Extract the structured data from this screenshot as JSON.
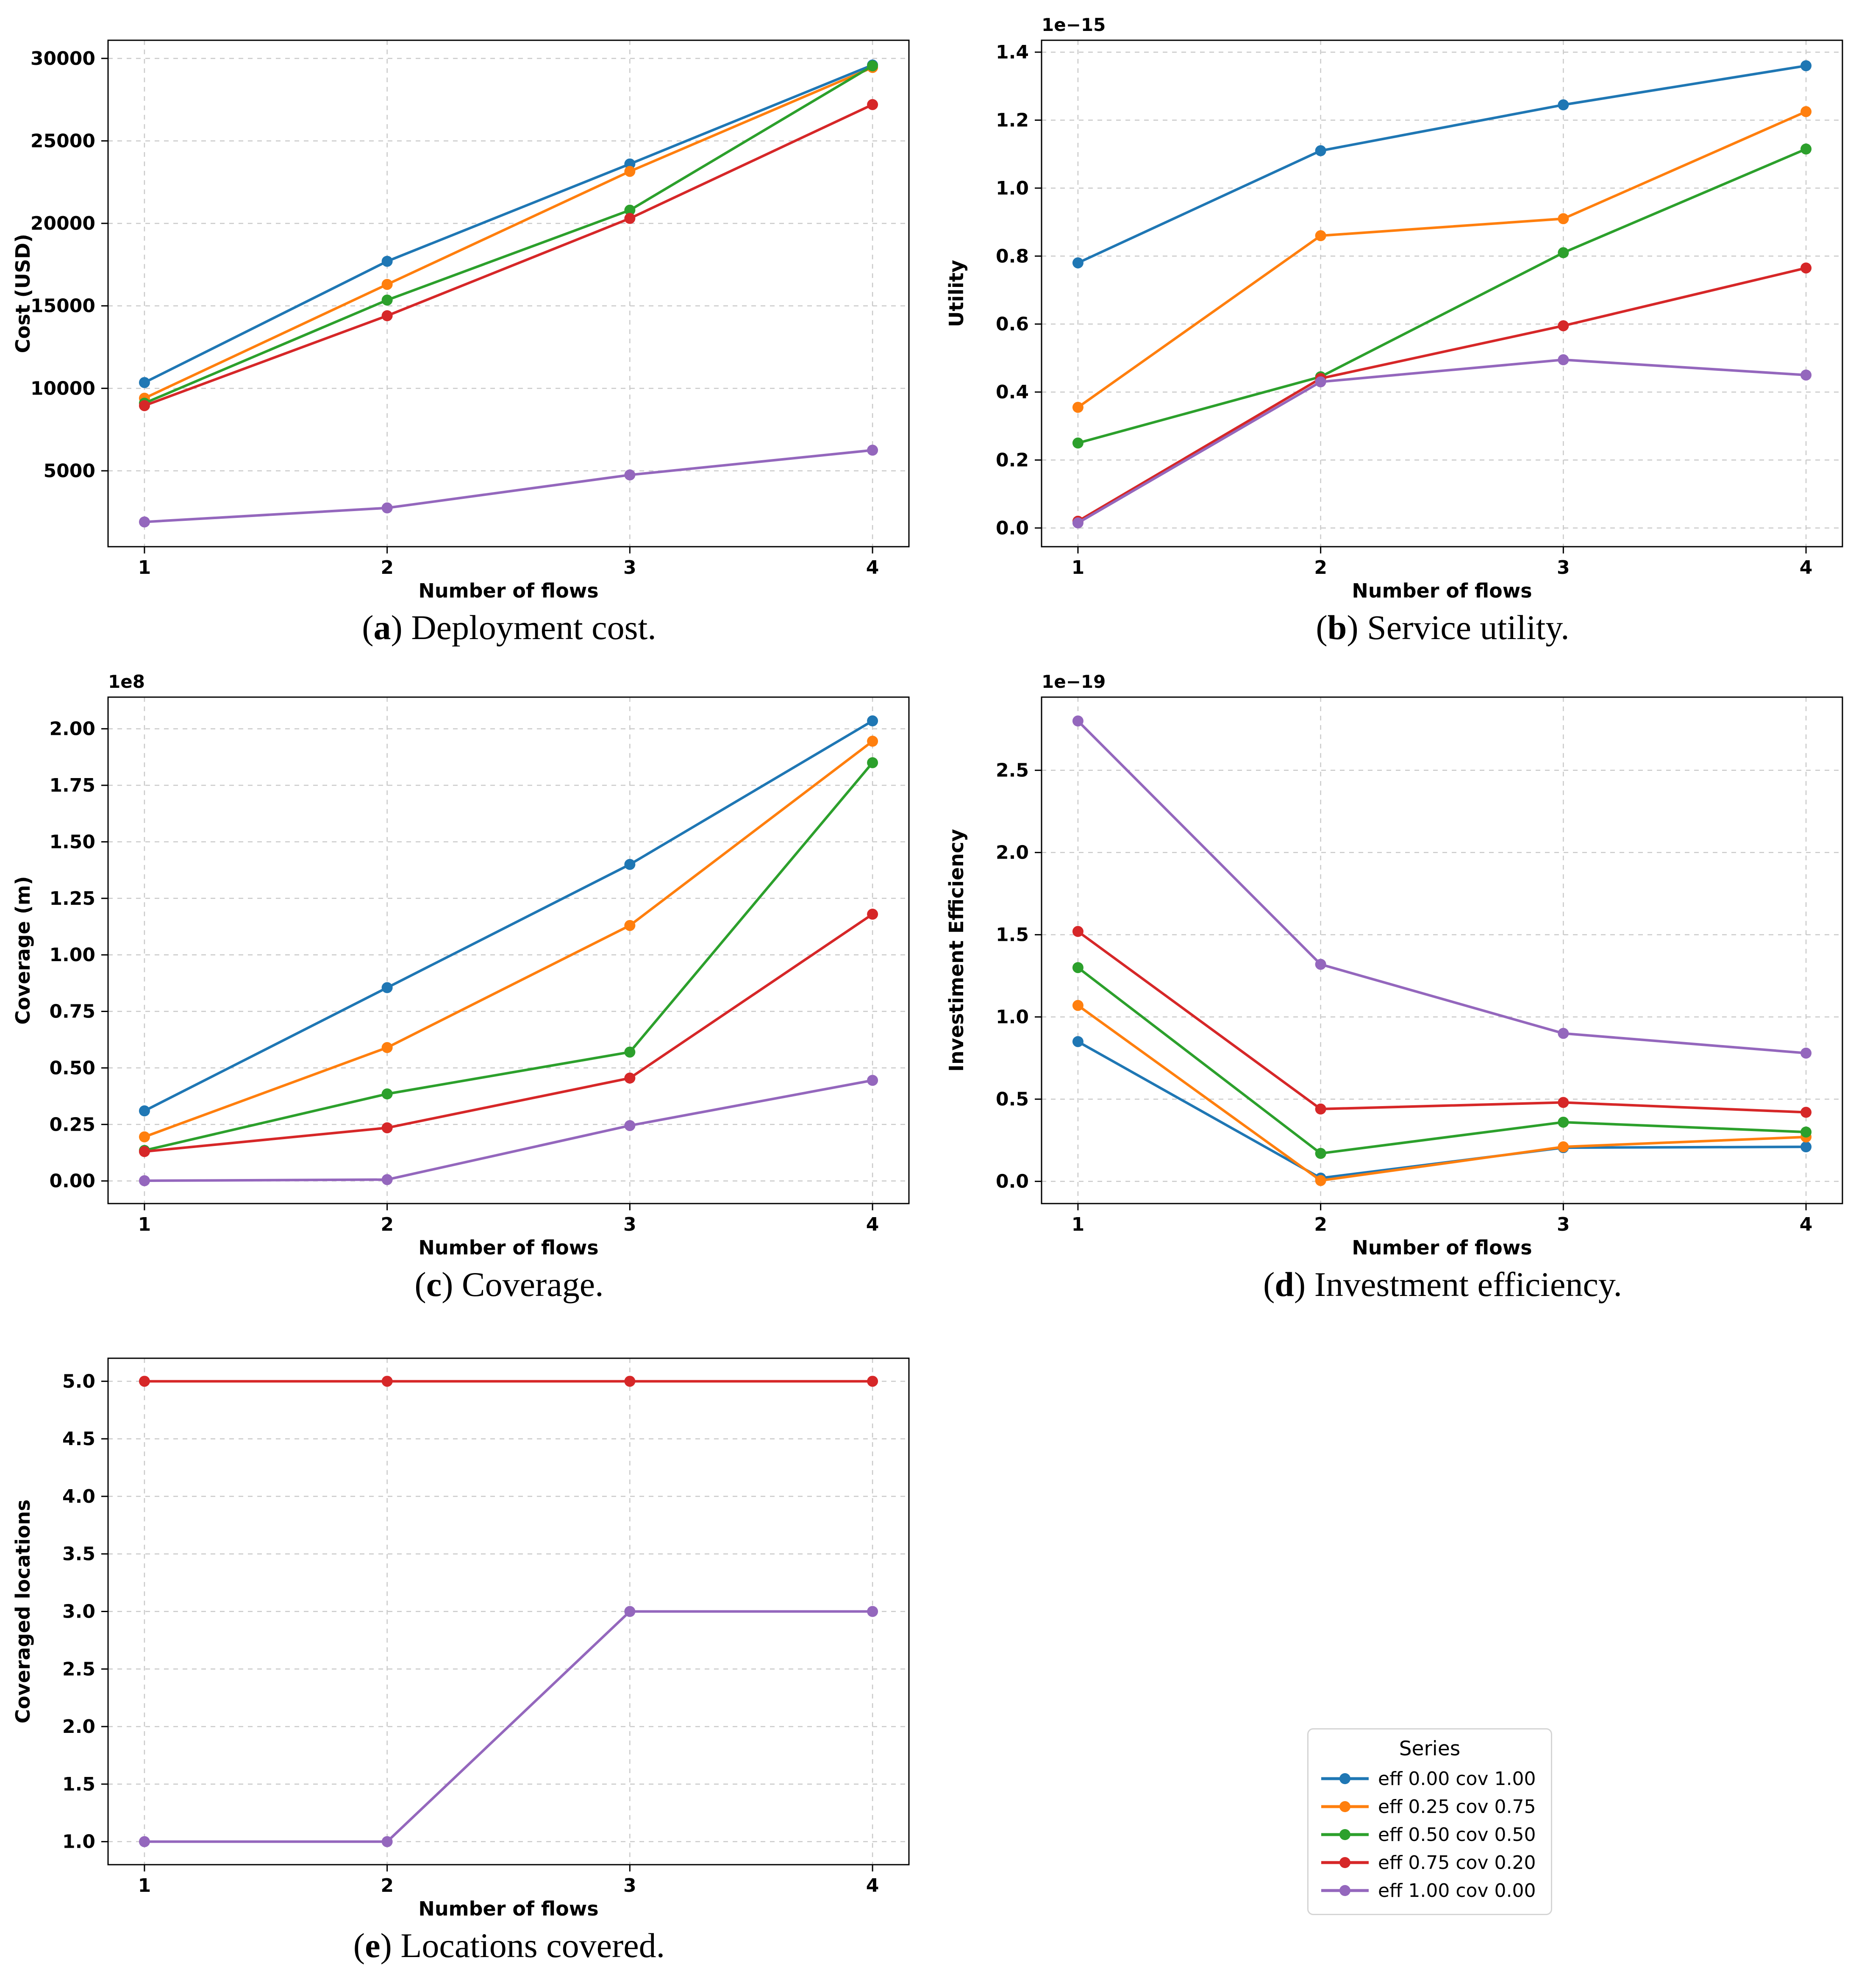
{
  "page": {
    "background": "#ffffff"
  },
  "axis": {
    "xlabel": "Number of flows",
    "x": [
      1,
      2,
      3,
      4
    ],
    "xtick_labels": [
      "1",
      "2",
      "3",
      "4"
    ],
    "xlim": [
      0.85,
      4.15
    ]
  },
  "legend": {
    "title": "Series",
    "items": [
      {
        "key": "s1",
        "label": "eff 0.00 cov 1.00",
        "color": "#1f77b4"
      },
      {
        "key": "s2",
        "label": "eff 0.25 cov 0.75",
        "color": "#ff7f0e"
      },
      {
        "key": "s3",
        "label": "eff 0.50 cov 0.50",
        "color": "#2ca02c"
      },
      {
        "key": "s4",
        "label": "eff 0.75 cov 0.20",
        "color": "#d62728"
      },
      {
        "key": "s5",
        "label": "eff 1.00 cov 0.00",
        "color": "#9467bd"
      }
    ]
  },
  "captions": {
    "a": {
      "open": "(",
      "letter": "a",
      "close": ") ",
      "text": "Deployment cost."
    },
    "b": {
      "open": "(",
      "letter": "b",
      "close": ") ",
      "text": "Service utility."
    },
    "c": {
      "open": "(",
      "letter": "c",
      "close": ") ",
      "text": "Coverage."
    },
    "d": {
      "open": "(",
      "letter": "d",
      "close": ") ",
      "text": "Investment efficiency."
    },
    "e": {
      "open": "(",
      "letter": "e",
      "close": ") ",
      "text": "Locations covered."
    }
  },
  "chart_data": [
    {
      "id": "a",
      "type": "line",
      "title": "Deployment cost",
      "xlabel": "Number of flows",
      "ylabel": "Cost (USD)",
      "offset_label": "",
      "x": [
        1,
        2,
        3,
        4
      ],
      "ylim": [
        400,
        31100
      ],
      "yticks": [
        5000,
        10000,
        15000,
        20000,
        25000,
        30000
      ],
      "ytick_labels": [
        "5000",
        "10000",
        "15000",
        "20000",
        "25000",
        "30000"
      ],
      "grid": true,
      "series": [
        {
          "key": "s1",
          "name": "eff 0.00 cov 1.00",
          "values": [
            10350,
            17700,
            23600,
            29600
          ]
        },
        {
          "key": "s2",
          "name": "eff 0.25 cov 0.75",
          "values": [
            9400,
            16300,
            23150,
            29450
          ]
        },
        {
          "key": "s3",
          "name": "eff 0.50 cov 0.50",
          "values": [
            9100,
            15350,
            20800,
            29550
          ]
        },
        {
          "key": "s4",
          "name": "eff 0.75 cov 0.20",
          "values": [
            8950,
            14400,
            20300,
            27200
          ]
        },
        {
          "key": "s5",
          "name": "eff 1.00 cov 0.00",
          "values": [
            1900,
            2750,
            4750,
            6250
          ]
        }
      ]
    },
    {
      "id": "b",
      "type": "line",
      "title": "Service utility",
      "xlabel": "Number of flows",
      "ylabel": "Utility",
      "offset_label": "1e−15",
      "value_scale": "1e-15",
      "x": [
        1,
        2,
        3,
        4
      ],
      "ylim": [
        -0.055,
        1.435
      ],
      "yticks": [
        0.0,
        0.2,
        0.4,
        0.6,
        0.8,
        1.0,
        1.2,
        1.4
      ],
      "ytick_labels": [
        "0.0",
        "0.2",
        "0.4",
        "0.6",
        "0.8",
        "1.0",
        "1.2",
        "1.4"
      ],
      "grid": true,
      "series": [
        {
          "key": "s1",
          "name": "eff 0.00 cov 1.00",
          "values": [
            0.78,
            1.11,
            1.245,
            1.36
          ]
        },
        {
          "key": "s2",
          "name": "eff 0.25 cov 0.75",
          "values": [
            0.355,
            0.86,
            0.91,
            1.225
          ]
        },
        {
          "key": "s3",
          "name": "eff 0.50 cov 0.50",
          "values": [
            0.25,
            0.445,
            0.81,
            1.115
          ]
        },
        {
          "key": "s4",
          "name": "eff 0.75 cov 0.20",
          "values": [
            0.02,
            0.44,
            0.595,
            0.765
          ]
        },
        {
          "key": "s5",
          "name": "eff 1.00 cov 0.00",
          "values": [
            0.015,
            0.43,
            0.495,
            0.45
          ]
        }
      ]
    },
    {
      "id": "c",
      "type": "line",
      "title": "Coverage",
      "xlabel": "Number of flows",
      "ylabel": "Coverage (m)",
      "offset_label": "1e8",
      "value_scale": "1e8",
      "x": [
        1,
        2,
        3,
        4
      ],
      "ylim": [
        -0.1,
        2.14
      ],
      "yticks": [
        0.0,
        0.25,
        0.5,
        0.75,
        1.0,
        1.25,
        1.5,
        1.75,
        2.0
      ],
      "ytick_labels": [
        "0.00",
        "0.25",
        "0.50",
        "0.75",
        "1.00",
        "1.25",
        "1.50",
        "1.75",
        "2.00"
      ],
      "grid": true,
      "series": [
        {
          "key": "s1",
          "name": "eff 0.00 cov 1.00",
          "values": [
            0.31,
            0.855,
            1.4,
            2.035
          ]
        },
        {
          "key": "s2",
          "name": "eff 0.25 cov 0.75",
          "values": [
            0.195,
            0.59,
            1.13,
            1.945
          ]
        },
        {
          "key": "s3",
          "name": "eff 0.50 cov 0.50",
          "values": [
            0.135,
            0.385,
            0.57,
            1.85
          ]
        },
        {
          "key": "s4",
          "name": "eff 0.75 cov 0.20",
          "values": [
            0.13,
            0.235,
            0.455,
            1.18
          ]
        },
        {
          "key": "s5",
          "name": "eff 1.00 cov 0.00",
          "values": [
            0.001,
            0.006,
            0.245,
            0.445
          ]
        }
      ]
    },
    {
      "id": "d",
      "type": "line",
      "title": "Investment efficiency",
      "xlabel": "Number of flows",
      "ylabel": "Investiment Efficiency",
      "offset_label": "1e−19",
      "value_scale": "1e-19",
      "x": [
        1,
        2,
        3,
        4
      ],
      "ylim": [
        -0.135,
        2.945
      ],
      "yticks": [
        0.0,
        0.5,
        1.0,
        1.5,
        2.0,
        2.5
      ],
      "ytick_labels": [
        "0.0",
        "0.5",
        "1.0",
        "1.5",
        "2.0",
        "2.5"
      ],
      "grid": true,
      "series": [
        {
          "key": "s1",
          "name": "eff 0.00 cov 1.00",
          "values": [
            0.85,
            0.02,
            0.205,
            0.21
          ]
        },
        {
          "key": "s2",
          "name": "eff 0.25 cov 0.75",
          "values": [
            1.07,
            0.005,
            0.21,
            0.27
          ]
        },
        {
          "key": "s3",
          "name": "eff 0.50 cov 0.50",
          "values": [
            1.3,
            0.17,
            0.36,
            0.3
          ]
        },
        {
          "key": "s4",
          "name": "eff 0.75 cov 0.20",
          "values": [
            1.52,
            0.44,
            0.48,
            0.42
          ]
        },
        {
          "key": "s5",
          "name": "eff 1.00 cov 0.00",
          "values": [
            2.8,
            1.32,
            0.9,
            0.78
          ]
        }
      ]
    },
    {
      "id": "e",
      "type": "line",
      "title": "Locations covered",
      "xlabel": "Number of flows",
      "ylabel": "Coveraged locations",
      "offset_label": "",
      "x": [
        1,
        2,
        3,
        4
      ],
      "ylim": [
        0.8,
        5.2
      ],
      "yticks": [
        1.0,
        1.5,
        2.0,
        2.5,
        3.0,
        3.5,
        4.0,
        4.5,
        5.0
      ],
      "ytick_labels": [
        "1.0",
        "1.5",
        "2.0",
        "2.5",
        "3.0",
        "3.5",
        "4.0",
        "4.5",
        "5.0"
      ],
      "grid": true,
      "series": [
        {
          "key": "s4",
          "name": "eff 0.75 cov 0.20",
          "values": [
            5,
            5,
            5,
            5
          ]
        },
        {
          "key": "s5",
          "name": "eff 1.00 cov 0.00",
          "values": [
            1,
            1,
            3,
            3
          ]
        }
      ]
    }
  ]
}
